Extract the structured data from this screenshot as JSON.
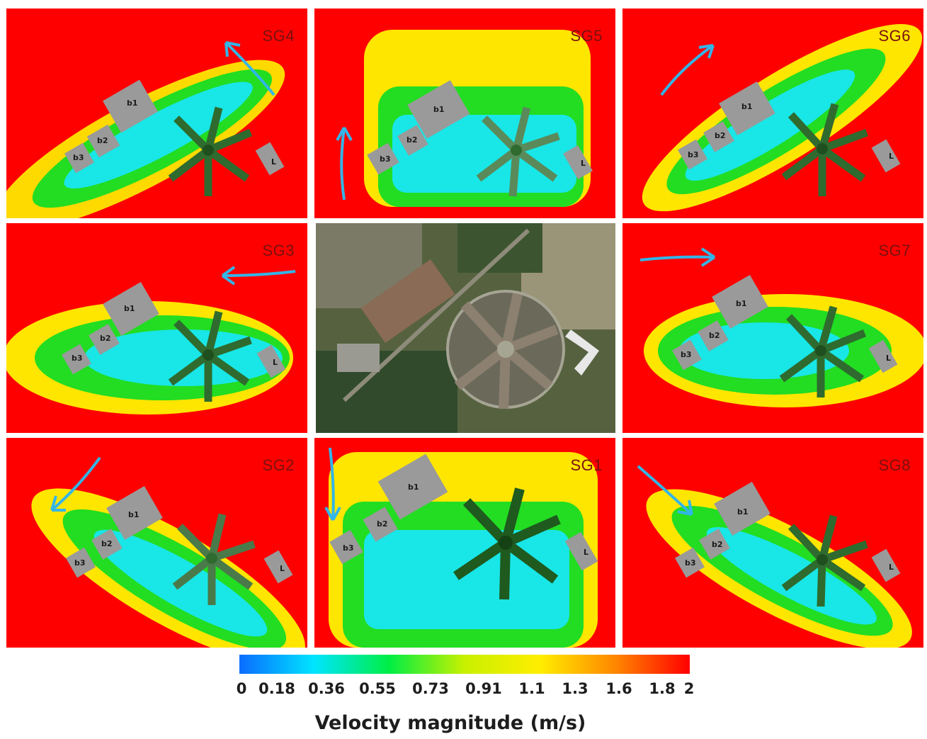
{
  "panels": [
    {
      "id": "SG4",
      "label": "SG4",
      "wind_arrow": "up-left"
    },
    {
      "id": "SG5",
      "label": "SG5",
      "wind_arrow": "up"
    },
    {
      "id": "SG6",
      "label": "SG6",
      "wind_arrow": "up-right"
    },
    {
      "id": "SG3",
      "label": "SG3",
      "wind_arrow": "left"
    },
    {
      "id": "center",
      "label": "",
      "description": "aerial photograph"
    },
    {
      "id": "SG7",
      "label": "SG7",
      "wind_arrow": "right"
    },
    {
      "id": "SG2",
      "label": "SG2",
      "wind_arrow": "down-left"
    },
    {
      "id": "SG1",
      "label": "SG1",
      "wind_arrow": "down"
    },
    {
      "id": "SG8",
      "label": "SG8",
      "wind_arrow": "down-right"
    }
  ],
  "building_labels": [
    "b1",
    "b2",
    "b3",
    "L"
  ],
  "colorbar": {
    "ticks": [
      "0",
      "0.18",
      "0.36",
      "0.55",
      "0.73",
      "0.91",
      "1.1",
      "1.3",
      "1.6",
      "1.8",
      "2"
    ],
    "label": "Velocity magnitude (m/s)",
    "colors": [
      "#0a6cff",
      "#00e5ff",
      "#00ee44",
      "#c8f000",
      "#ffee00",
      "#ff8800",
      "#ff0000"
    ]
  },
  "colors": {
    "background_flow": "#ff0000",
    "wake_yellow": "#ffe600",
    "wake_green": "#22dd22",
    "wake_cyan": "#19e6e6",
    "building": "#9a9a9a",
    "radial_barn": "#2f6b2f",
    "arrow": "#33b5e8"
  }
}
